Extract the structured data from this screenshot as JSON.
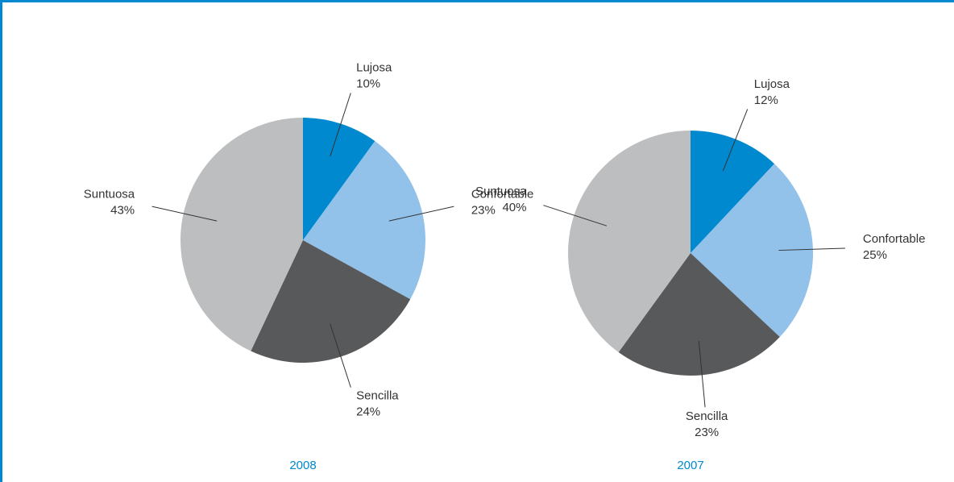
{
  "chart_data": [
    {
      "type": "pie",
      "title": "2008",
      "categories": [
        "Lujosa",
        "Confortable",
        "Sencilla",
        "Suntuosa"
      ],
      "values": [
        10,
        23,
        24,
        43
      ],
      "value_labels": [
        "10%",
        "23%",
        "24%",
        "43%"
      ],
      "colors": [
        "#0089cf",
        "#92c1e9",
        "#58595b",
        "#bcbec0"
      ]
    },
    {
      "type": "pie",
      "title": "2007",
      "categories": [
        "Lujosa",
        "Confortable",
        "Sencilla",
        "Suntuosa"
      ],
      "values": [
        12,
        25,
        23,
        40
      ],
      "value_labels": [
        "12%",
        "25%",
        "23%",
        "40%"
      ],
      "colors": [
        "#0089cf",
        "#92c1e9",
        "#58595b",
        "#bcbec0"
      ]
    }
  ]
}
